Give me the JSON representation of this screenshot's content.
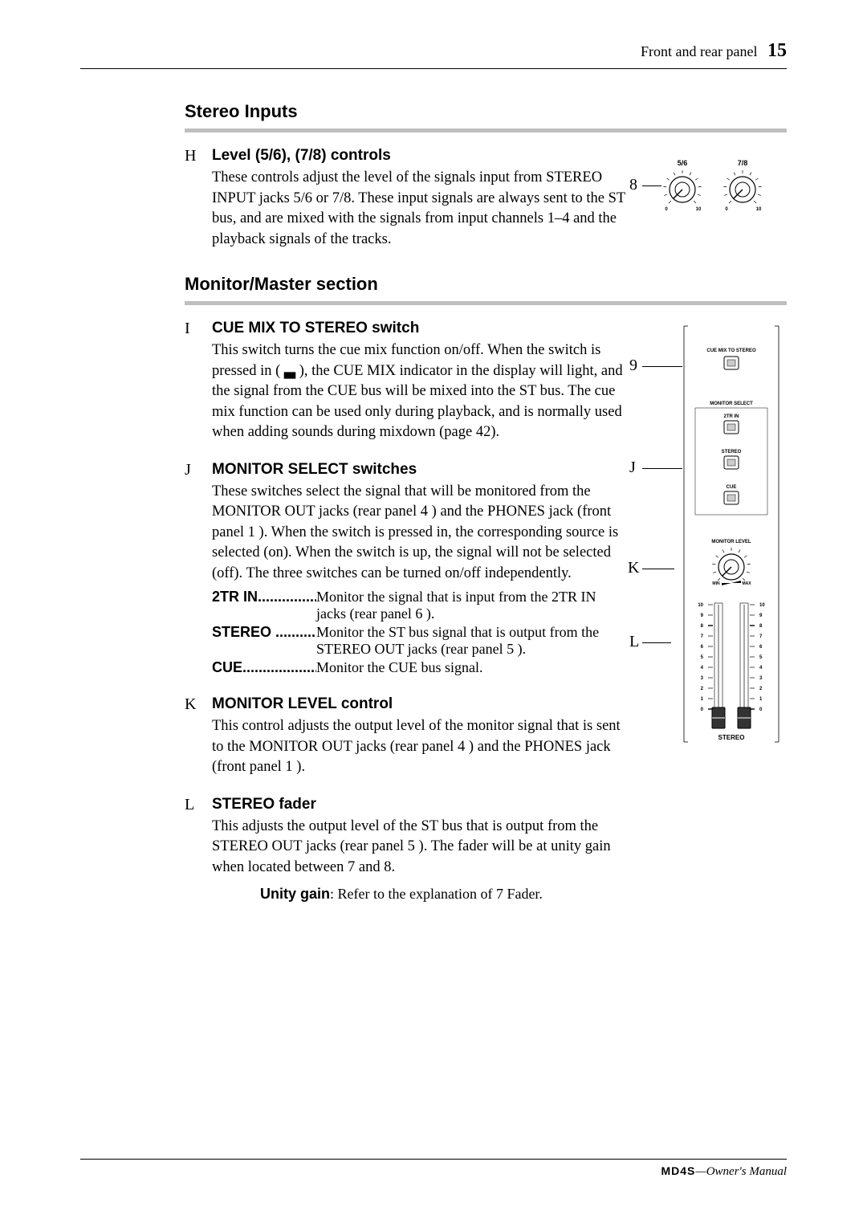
{
  "header": {
    "section": "Front and rear panel",
    "page": "15"
  },
  "sections": {
    "stereo": {
      "title": "Stereo Inputs",
      "H": {
        "letter": "H",
        "title": "Level (5/6), (7/8) controls",
        "desc": "These controls adjust the level of the signals input from STEREO INPUT jacks 5/6 or 7/8. These input signals are always sent to the ST bus, and are mixed with the signals from input channels 1–4 and the playback signals of the tracks."
      }
    },
    "monitor": {
      "title": "Monitor/Master section",
      "I": {
        "letter": "I",
        "title": "CUE MIX TO STEREO switch",
        "desc": "This switch turns the cue mix function on/off. When the switch is pressed in ( ▃ ), the CUE MIX indicator in the display will light, and the signal from the CUE bus will be mixed into the ST bus. The cue mix function can be used only during playback, and is normally used when adding sounds during mixdown (page 42)."
      },
      "J": {
        "letter": "J",
        "title": "MONITOR SELECT switches",
        "desc": "These switches select the signal that will be monitored from the MONITOR OUT jacks (rear panel 4 ) and the PHONES jack (front panel 1 ). When the switch is pressed in, the corresponding source is selected (on). When the switch is up, the signal will not be selected (off). The three switches can be turned on/off independently.",
        "defs": [
          {
            "term": "2TR IN",
            "def": "Monitor the signal that is input from the 2TR IN jacks (rear panel 6 )."
          },
          {
            "term": "STEREO",
            "def": "Monitor the ST bus signal that is output from the STEREO OUT jacks (rear panel 5 )."
          },
          {
            "term": "CUE",
            "def": "Monitor the CUE bus signal."
          }
        ]
      },
      "K": {
        "letter": "K",
        "title": "MONITOR LEVEL control",
        "desc": "This control adjusts the output level of the monitor signal that is sent to the MONITOR OUT jacks (rear panel 4 ) and the PHONES jack (front panel 1 )."
      },
      "L": {
        "letter": "L",
        "title": "STEREO fader",
        "desc": "This adjusts the output level of the ST bus that is output from the STEREO OUT jacks (rear panel 5 ). The fader will be at unity gain when located between 7 and 8.",
        "note_bold": "Unity gain",
        "note_rest": ": Refer to the explanation of 7  Fader."
      }
    }
  },
  "fig8": {
    "callout": "8",
    "knobs": [
      {
        "label": "5/6",
        "min": "0",
        "max": "10"
      },
      {
        "label": "7/8",
        "min": "0",
        "max": "10"
      }
    ]
  },
  "figMonitor": {
    "callouts": {
      "c9": "9",
      "cJ": "J",
      "cK": "K",
      "cL": "L"
    },
    "labels": {
      "cuemix": "CUE MIX TO STEREO",
      "monsel": "MONITOR SELECT",
      "sw1": "2TR IN",
      "sw2": "STEREO",
      "sw3": "CUE",
      "monlvl": "MONITOR LEVEL",
      "min": "MIN",
      "max": "MAX",
      "fader": "STEREO"
    },
    "scale": [
      "10",
      "9",
      "8",
      "7",
      "6",
      "5",
      "4",
      "3",
      "2",
      "1",
      "0"
    ]
  },
  "footer": {
    "brand": "MD4S",
    "text": "—Owner's Manual"
  },
  "colors": {
    "rule": "#bfbfbf",
    "text": "#000000",
    "bg": "#ffffff"
  }
}
